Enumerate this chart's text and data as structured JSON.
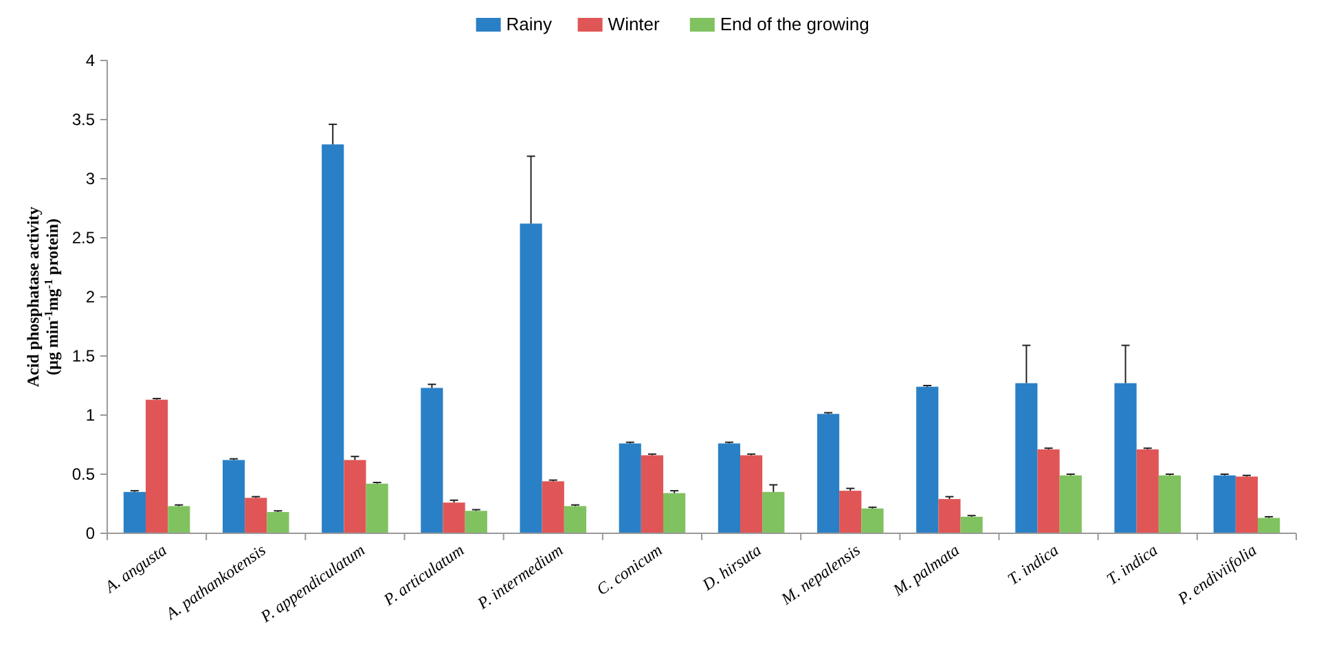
{
  "chart_data": {
    "type": "bar",
    "ylabel": "Acid phosphatase activity\n(µg min$^{-1}$mg$^{-1}$ protein)",
    "categories": [
      "A. angusta",
      "A. pathankotensis",
      "P. appendiculatum",
      "P. articulatum",
      "P. intermedium",
      "C. conicum",
      "D. hirsuta",
      "M. nepalensis",
      "M. palmata",
      "T. indica",
      "T. indica",
      "P. endiviifolia"
    ],
    "series": [
      {
        "name": "Rainy",
        "color": "#2a80c6",
        "values": [
          0.35,
          0.62,
          3.29,
          1.23,
          2.62,
          0.76,
          0.76,
          1.01,
          1.24,
          1.27,
          1.27,
          0.49
        ],
        "errors": [
          0.01,
          0.01,
          0.17,
          0.03,
          0.57,
          0.01,
          0.01,
          0.01,
          0.01,
          0.32,
          0.32,
          0.01
        ]
      },
      {
        "name": "Winter",
        "color": "#e05656",
        "values": [
          1.13,
          0.3,
          0.62,
          0.26,
          0.44,
          0.66,
          0.66,
          0.36,
          0.29,
          0.71,
          0.71,
          0.48
        ],
        "errors": [
          0.01,
          0.01,
          0.03,
          0.02,
          0.01,
          0.01,
          0.01,
          0.02,
          0.02,
          0.01,
          0.01,
          0.01
        ]
      },
      {
        "name": "End of the growing",
        "color": "#80c260",
        "values": [
          0.23,
          0.18,
          0.42,
          0.19,
          0.23,
          0.34,
          0.35,
          0.21,
          0.14,
          0.49,
          0.49,
          0.13
        ],
        "errors": [
          0.01,
          0.01,
          0.01,
          0.01,
          0.01,
          0.02,
          0.06,
          0.01,
          0.01,
          0.01,
          0.01,
          0.01
        ]
      }
    ],
    "ylim": [
      0,
      4
    ],
    "yticks": [
      0,
      0.5,
      1,
      1.5,
      2,
      2.5,
      3,
      3.5,
      4
    ],
    "grid": false,
    "legend": "top"
  }
}
